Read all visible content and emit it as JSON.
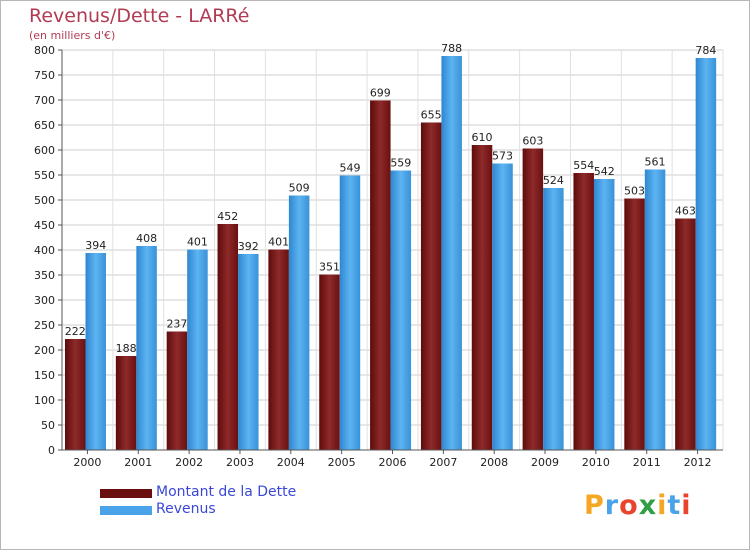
{
  "title": "Revenus/Dette - LARRé",
  "subtitle": "(en milliers d'€)",
  "chart_data": {
    "type": "bar",
    "categories": [
      "2000",
      "2001",
      "2002",
      "2003",
      "2004",
      "2005",
      "2006",
      "2007",
      "2008",
      "2009",
      "2010",
      "2011",
      "2012"
    ],
    "series": [
      {
        "name": "Montant de la Dette",
        "color": "#8b1a1a",
        "values": [
          222,
          188,
          237,
          452,
          401,
          351,
          699,
          655,
          610,
          603,
          554,
          503,
          463
        ]
      },
      {
        "name": "Revenus",
        "color": "#4aa3e8",
        "values": [
          394,
          408,
          401,
          392,
          509,
          549,
          559,
          788,
          573,
          524,
          542,
          561,
          784
        ]
      }
    ],
    "ylim": [
      0,
      800
    ],
    "yticks": [
      0,
      50,
      100,
      150,
      200,
      250,
      300,
      350,
      400,
      450,
      500,
      550,
      600,
      650,
      700,
      750,
      800
    ],
    "grid": true,
    "legend_position": "bottom-left"
  },
  "legend": {
    "debt_label": "Montant de la Dette",
    "revenue_label": "Revenus"
  },
  "logo": {
    "text": "Proxiti",
    "letters": [
      "P",
      "r",
      "o",
      "x",
      "i",
      "t",
      "i"
    ],
    "colors": [
      "#f5a623",
      "#4aa3e8",
      "#e8452c",
      "#2f9e44",
      "#f5a623",
      "#4aa3e8",
      "#e8452c"
    ]
  }
}
